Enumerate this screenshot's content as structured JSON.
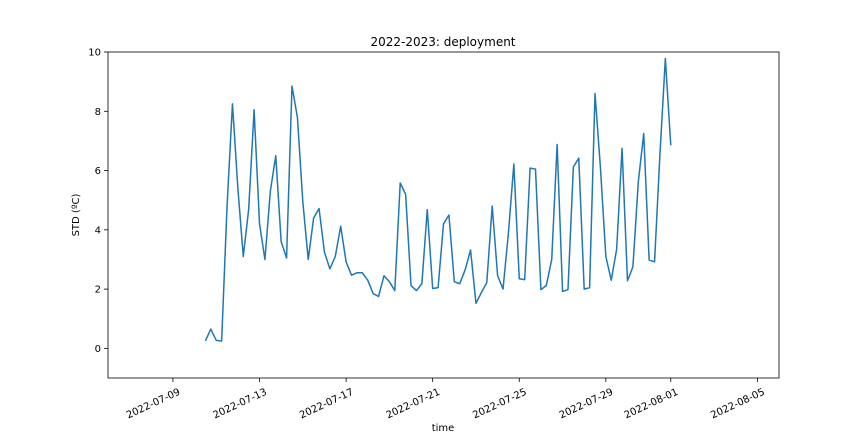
{
  "chart_data": {
    "type": "line",
    "title": "2022-2023: deployment",
    "xlabel": "time",
    "ylabel": "STD (ºC)",
    "x_type": "date",
    "xlim": [
      "2022-07-06",
      "2022-08-06"
    ],
    "ylim": [
      -1,
      10
    ],
    "x_ticks": [
      "2022-07-09",
      "2022-07-13",
      "2022-07-17",
      "2022-07-21",
      "2022-07-25",
      "2022-07-29",
      "2022-08-01",
      "2022-08-05"
    ],
    "y_ticks": [
      0,
      2,
      4,
      6,
      8,
      10
    ],
    "grid": false,
    "legend": "none",
    "color": "#1f77b4",
    "series": [
      {
        "x": [
          "2022-07-10 12:00",
          "2022-07-10 18:00",
          "2022-07-11 00:00",
          "2022-07-11 06:00",
          "2022-07-11 12:00",
          "2022-07-11 18:00",
          "2022-07-12 00:00",
          "2022-07-12 06:00",
          "2022-07-12 12:00",
          "2022-07-12 18:00",
          "2022-07-13 00:00",
          "2022-07-13 06:00",
          "2022-07-13 12:00",
          "2022-07-13 18:00",
          "2022-07-14 00:00",
          "2022-07-14 06:00",
          "2022-07-14 12:00",
          "2022-07-14 18:00",
          "2022-07-15 00:00",
          "2022-07-15 06:00",
          "2022-07-15 12:00",
          "2022-07-15 18:00",
          "2022-07-16 00:00",
          "2022-07-16 06:00",
          "2022-07-16 12:00",
          "2022-07-16 18:00",
          "2022-07-17 00:00",
          "2022-07-17 06:00",
          "2022-07-17 12:00",
          "2022-07-17 18:00",
          "2022-07-18 00:00",
          "2022-07-18 06:00",
          "2022-07-18 12:00",
          "2022-07-18 18:00",
          "2022-07-19 00:00",
          "2022-07-19 06:00",
          "2022-07-19 12:00",
          "2022-07-19 18:00",
          "2022-07-20 00:00",
          "2022-07-20 06:00",
          "2022-07-20 12:00",
          "2022-07-20 18:00",
          "2022-07-21 00:00",
          "2022-07-21 06:00",
          "2022-07-21 12:00",
          "2022-07-21 18:00",
          "2022-07-22 00:00",
          "2022-07-22 06:00",
          "2022-07-22 12:00",
          "2022-07-22 18:00",
          "2022-07-23 00:00",
          "2022-07-23 06:00",
          "2022-07-23 12:00",
          "2022-07-23 18:00",
          "2022-07-24 00:00",
          "2022-07-24 06:00",
          "2022-07-24 12:00",
          "2022-07-24 18:00",
          "2022-07-25 00:00",
          "2022-07-25 06:00",
          "2022-07-25 12:00",
          "2022-07-25 18:00",
          "2022-07-26 00:00",
          "2022-07-26 06:00",
          "2022-07-26 12:00",
          "2022-07-26 18:00",
          "2022-07-27 00:00",
          "2022-07-27 06:00",
          "2022-07-27 12:00",
          "2022-07-27 18:00",
          "2022-07-28 00:00",
          "2022-07-28 06:00",
          "2022-07-28 12:00",
          "2022-07-28 18:00",
          "2022-07-29 00:00",
          "2022-07-29 06:00",
          "2022-07-29 12:00",
          "2022-07-29 18:00",
          "2022-07-30 00:00",
          "2022-07-30 06:00",
          "2022-07-30 12:00",
          "2022-07-30 18:00",
          "2022-07-31 00:00",
          "2022-07-31 06:00",
          "2022-07-31 12:00",
          "2022-07-31 18:00",
          "2022-08-01 00:00"
        ],
        "values": [
          0.25,
          0.65,
          0.27,
          0.25,
          4.8,
          8.25,
          5.4,
          3.1,
          4.7,
          8.05,
          4.2,
          3.0,
          5.3,
          6.5,
          3.6,
          3.05,
          8.85,
          7.8,
          4.95,
          3.0,
          4.4,
          4.72,
          3.25,
          2.68,
          3.1,
          4.12,
          2.92,
          2.47,
          2.55,
          2.55,
          2.3,
          1.85,
          1.75,
          2.45,
          2.25,
          1.95,
          5.58,
          5.2,
          2.12,
          1.95,
          2.18,
          4.68,
          2.02,
          2.05,
          4.2,
          4.5,
          2.25,
          2.18,
          2.65,
          3.32,
          1.52,
          1.88,
          2.22,
          4.8,
          2.45,
          2.0,
          3.9,
          6.22,
          2.35,
          2.32,
          6.08,
          6.05,
          1.98,
          2.12,
          3.0,
          6.88,
          1.92,
          1.98,
          6.12,
          6.42,
          2.0,
          2.05,
          8.6,
          6.1,
          3.1,
          2.3,
          3.35,
          6.75,
          2.28,
          2.75,
          5.62,
          7.25,
          2.98,
          2.92,
          6.55,
          9.78,
          6.85
        ]
      }
    ]
  }
}
